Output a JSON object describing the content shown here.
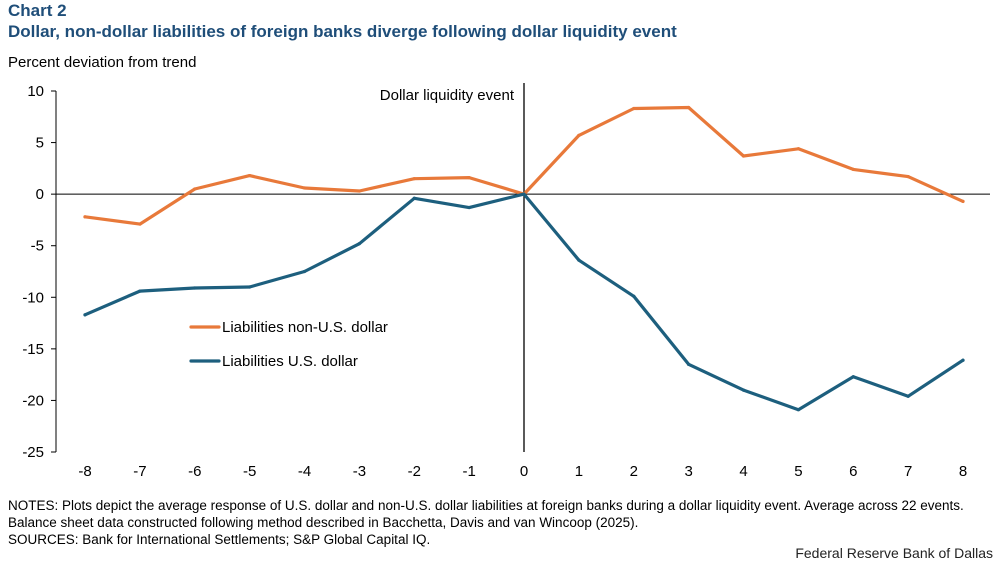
{
  "header": {
    "chart_number": "Chart 2",
    "title": "Dollar, non-dollar liabilities of foreign banks diverge following dollar liquidity event",
    "subtitle": "Percent deviation from trend"
  },
  "chart_data": {
    "type": "line",
    "title": "Dollar, non-dollar liabilities of foreign banks diverge following dollar liquidity event",
    "ylabel": "Percent deviation from trend",
    "xlabel": "",
    "x": [
      -8,
      -7,
      -6,
      -5,
      -4,
      -3,
      -2,
      -1,
      0,
      1,
      2,
      3,
      4,
      5,
      6,
      7,
      8
    ],
    "xticks": [
      "-8",
      "-7",
      "-6",
      "-5",
      "-4",
      "-3",
      "-2",
      "-1",
      "0",
      "1",
      "2",
      "3",
      "4",
      "5",
      "6",
      "7",
      "8"
    ],
    "ylim": [
      -25,
      10
    ],
    "yticks": [
      10,
      5,
      0,
      -5,
      -10,
      -15,
      -20,
      -25
    ],
    "ytick_labels": [
      "10",
      "5",
      "0",
      "-5",
      "-10",
      "-15",
      "-20",
      "-25"
    ],
    "series": [
      {
        "name": "Liabilities non-U.S. dollar",
        "color": "#e8793a",
        "values": [
          -2.2,
          -2.9,
          0.5,
          1.8,
          0.6,
          0.3,
          1.5,
          1.6,
          0.0,
          5.7,
          8.3,
          8.4,
          3.7,
          4.4,
          2.4,
          1.7,
          -0.7
        ]
      },
      {
        "name": "Liabilities U.S. dollar",
        "color": "#1d5f7e",
        "values": [
          -11.7,
          -9.4,
          -9.1,
          -9.0,
          -7.5,
          -4.8,
          -0.4,
          -1.3,
          0.0,
          -6.4,
          -9.9,
          -16.5,
          -19.0,
          -20.9,
          -17.7,
          -19.6,
          -16.1
        ]
      }
    ],
    "annotations": [
      {
        "text": "Dollar liquidity event",
        "x": 0
      }
    ],
    "legend_position": "left-middle",
    "grid": false
  },
  "footer": {
    "notes": "NOTES: Plots depict the average response of U.S. dollar and non-U.S. dollar liabilities at foreign banks during a dollar liquidity event. Average across 22 events. Balance sheet data constructed following method described in Bacchetta, Davis and van Wincoop (2025).",
    "sources": "SOURCES: Bank for International  Settlements; S&P Global Capital IQ.",
    "credit": "Federal Reserve Bank of Dallas"
  }
}
